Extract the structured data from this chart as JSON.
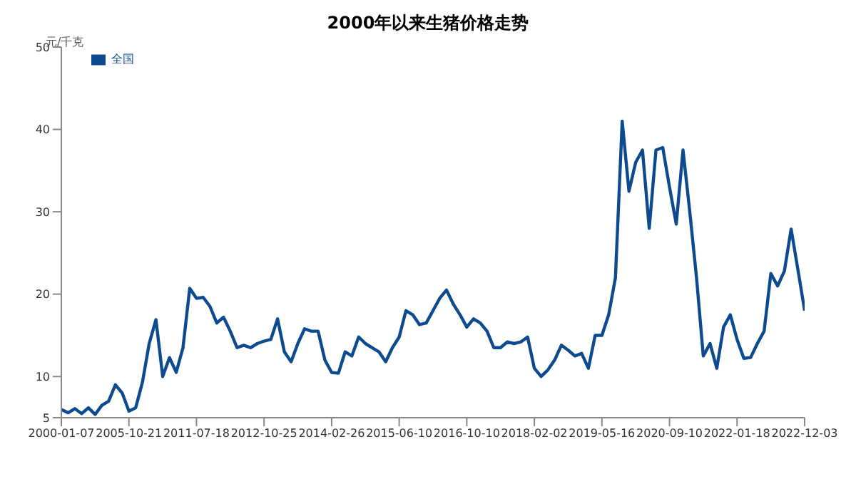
{
  "chart_data": {
    "type": "line",
    "title": "2000年以来生猪价格走势",
    "ylabel": "元/千克",
    "legend": "top left",
    "grid": false,
    "marker": "none",
    "line_style": "solid",
    "categories": [
      "2000-01-07",
      null,
      null,
      null,
      null,
      null,
      null,
      null,
      null,
      null,
      "2005-10-21",
      null,
      null,
      null,
      null,
      null,
      null,
      null,
      null,
      null,
      "2011-07-18",
      null,
      null,
      null,
      null,
      null,
      null,
      null,
      null,
      null,
      "2012-10-25",
      null,
      null,
      null,
      null,
      null,
      null,
      null,
      null,
      null,
      "2014-02-26",
      null,
      null,
      null,
      null,
      null,
      null,
      null,
      null,
      null,
      "2015-06-10",
      null,
      null,
      null,
      null,
      null,
      null,
      null,
      null,
      null,
      "2016-10-10",
      null,
      null,
      null,
      null,
      null,
      null,
      null,
      null,
      null,
      "2018-02-02",
      null,
      null,
      null,
      null,
      null,
      null,
      null,
      null,
      null,
      "2019-05-16",
      null,
      null,
      null,
      null,
      null,
      null,
      null,
      null,
      null,
      "2020-09-10",
      null,
      null,
      null,
      null,
      null,
      null,
      null,
      null,
      null,
      "2022-01-18",
      null,
      null,
      null,
      null,
      null,
      null,
      null,
      null,
      null,
      "2022-12-03"
    ],
    "ylim": [
      5,
      50
    ],
    "yticks": [
      5,
      10,
      20,
      30,
      40,
      50
    ],
    "series": [
      {
        "name": "全国",
        "color": "#0d4a8f",
        "values": [
          6.0,
          5.6,
          6.1,
          5.5,
          6.2,
          5.4,
          6.5,
          7.0,
          9.0,
          8.0,
          5.8,
          6.2,
          9.3,
          14,
          16.9,
          10,
          12.3,
          10.5,
          13.5,
          20.7,
          19.5,
          19.6,
          18.5,
          16.5,
          17.2,
          15.5,
          13.5,
          13.8,
          13.5,
          14,
          14.3,
          14.5,
          17,
          13,
          11.8,
          14,
          15.8,
          15.5,
          15.5,
          12,
          10.5,
          10.4,
          13,
          12.5,
          14.8,
          14,
          13.5,
          13,
          11.8,
          13.5,
          14.8,
          18,
          17.5,
          16.3,
          16.5,
          18,
          19.5,
          20.5,
          18.8,
          17.5,
          16,
          17,
          16.5,
          15.5,
          13.5,
          13.5,
          14.2,
          14,
          14.2,
          14.8,
          11,
          10,
          10.8,
          12,
          13.8,
          13.2,
          12.5,
          12.8,
          11,
          15,
          15,
          17.5,
          22,
          41,
          32.5,
          36,
          37.5,
          28,
          37.5,
          37.8,
          33,
          28.5,
          37.5,
          30,
          22,
          12.5,
          14,
          11,
          16,
          17.5,
          14.5,
          12.2,
          12.3,
          14,
          15.5,
          22.5,
          21,
          22.8,
          27.9,
          23,
          18
        ]
      }
    ]
  }
}
